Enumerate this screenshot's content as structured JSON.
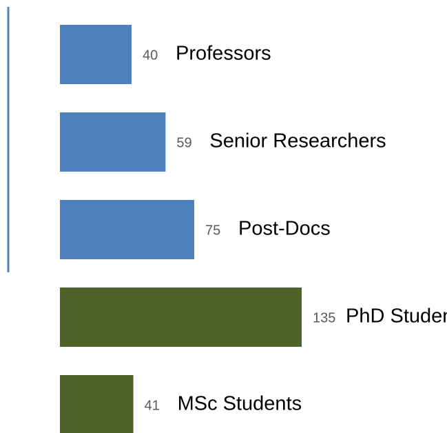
{
  "chart_data": {
    "type": "barh",
    "categories": [
      "Professors",
      "Senior Researchers",
      "Post-Docs",
      "PhD Students",
      "MSc Students"
    ],
    "values": [
      40,
      59,
      75,
      135,
      41
    ],
    "colors": [
      "#4f81bd",
      "#4f81bd",
      "#4f81bd",
      "#4f6228",
      "#4f6228"
    ]
  }
}
